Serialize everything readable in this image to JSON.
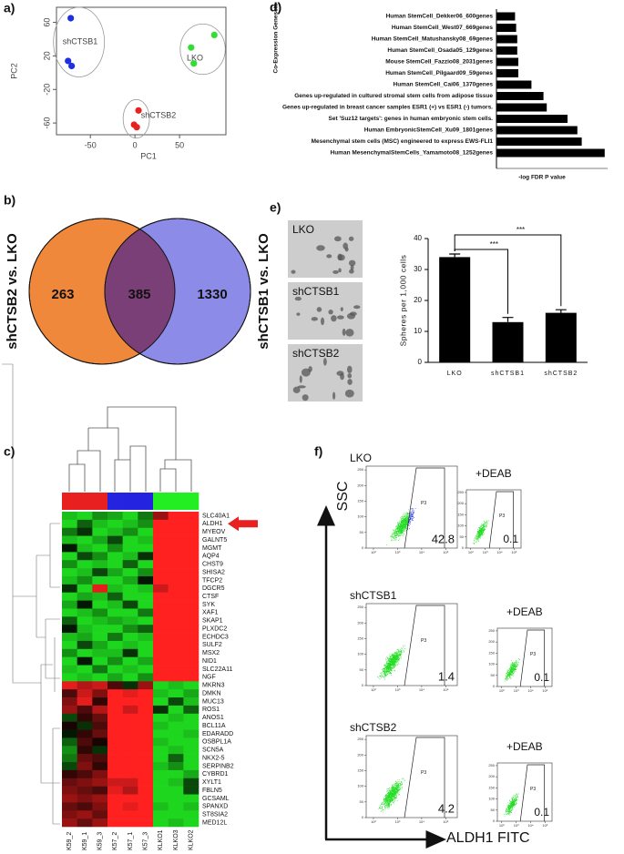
{
  "chart_data": [
    {
      "type": "scatter",
      "panel_label": "a)",
      "xlabel": "PC1",
      "ylabel": "PC2",
      "xlim": [
        -88,
        102
      ],
      "ylim": [
        -74,
        78
      ],
      "xticks": [
        -50,
        0,
        50
      ],
      "yticks": [
        -60,
        -20,
        20,
        60
      ],
      "series": [
        {
          "name": "shCTSB1",
          "color": "#2030e0",
          "x": [
            -72,
            -75,
            -71
          ],
          "values": [
            65,
            14,
            8
          ]
        },
        {
          "name": "LKO",
          "color": "#33dd33",
          "x": [
            89,
            63,
            66
          ],
          "values": [
            45,
            30,
            11
          ]
        },
        {
          "name": "shCTSB2",
          "color": "#e82020",
          "x": [
            4,
            -1,
            2
          ],
          "values": [
            -45,
            -62,
            -65
          ]
        }
      ]
    },
    {
      "type": "hbar",
      "panel_label": "d)",
      "ylabel": "Co-Expression Genesets",
      "xlabel": "-log FDR P value",
      "color": "#000000",
      "xlim": [
        0,
        10
      ],
      "categories": [
        "Human StemCell_Dekker06_600genes",
        "Human StemCell_West07_669genes",
        "Human StemCell_Matushansky08_69genes",
        "Human StemCell_Osada05_129genes",
        "Mouse StemCell_Fazzio08_2031genes",
        "Human StemCell_Pilgaard09_59genes",
        "Human StemCell_Cai06_1370genes",
        "Genes up-regulated in cultured stromal stem cells from adipose tissue",
        "Genes up-regulated in breast cancer samples  ESR1 (+) vs ESR1 (-) tumors.",
        "Set 'Suz12 targets': genes in human embryonic stem cells.",
        "Human EmbryonicStemCell_Xu09_1801genes",
        "Mesenchymal stem cells (MSC) engineered to express EWS-FLI1",
        "Human MesenchymalStemCells_Yamamoto08_1252genes"
      ],
      "values": [
        1.7,
        1.8,
        1.9,
        1.9,
        2.0,
        2.0,
        3.2,
        4.3,
        4.6,
        6.5,
        7.4,
        7.8,
        9.9
      ]
    },
    {
      "type": "venn",
      "panel_label": "b)",
      "sets": [
        {
          "name": "shCTSB2 vs. LKO",
          "color": "#f0883c",
          "value": 263
        },
        {
          "name": "shCTSB1 vs. LKO",
          "color": "#8c8ce8",
          "value": 1330
        }
      ],
      "overlap": {
        "value": 385,
        "color": "#7b3f78"
      }
    },
    {
      "type": "bar",
      "panel_label": "e)",
      "ylabel": "Spheres per 1,000 cells",
      "categories": [
        "LKO",
        "shCTSB1",
        "shCTSB2"
      ],
      "values": [
        34,
        13,
        16
      ],
      "errors": [
        1,
        1.5,
        1
      ],
      "color": "#000000",
      "ylim": [
        0,
        40
      ],
      "yticks": [
        0,
        10,
        20,
        30,
        40
      ],
      "annotations": [
        "***",
        "***"
      ]
    },
    {
      "type": "heatmap",
      "panel_label": "c)",
      "columns": [
        "K59_2",
        "K59_1",
        "K59_3",
        "K57_2",
        "K57_1",
        "K57_3",
        "KLKO1",
        "KLKO3",
        "KLKO2"
      ],
      "column_groups": [
        0,
        0,
        0,
        1,
        1,
        1,
        2,
        2,
        2
      ],
      "group_colors": [
        "#e82020",
        "#2424e0",
        "#22ee22"
      ],
      "colors": {
        "low": "#22ee22",
        "mid": "#000000",
        "high": "#ff2020"
      },
      "vlim": [
        -1,
        1
      ],
      "highlight_color": "#e82020",
      "rows": [
        "SLC40A1",
        "ALDH1",
        "MYEOV",
        "GALNT5",
        "MGMT",
        "AQP4",
        "CHST9",
        "SHISA2",
        "TFCP2",
        "DGCR5",
        "CTSF",
        "SYK",
        "XAF1",
        "SKAP1",
        "PLXDC2",
        "ECHDC3",
        "SULF2",
        "MSX2",
        "NID1",
        "SLC22A11",
        "NGF",
        "MKRN3",
        "DMKN",
        "MUC13",
        "ROS1",
        "ANOS1",
        "BCL11A",
        "EDARADD",
        "OSBPL1A",
        "SCN5A",
        "NKX2-5",
        "SERPINB2",
        "CYBRD1",
        "XYLT1",
        "FBLN5",
        "GCSAML",
        "SPANXD",
        "ST8SIA2",
        "MED12L"
      ],
      "values": [
        [
          -0.8,
          -0.9,
          -0.6,
          -0.7,
          -0.9,
          -0.5,
          0.6,
          1,
          1
        ],
        [
          -0.9,
          -0.4,
          -0.8,
          -0.9,
          -0.8,
          -0.6,
          1,
          1,
          1
        ],
        [
          -0.5,
          -0.2,
          -0.9,
          -0.8,
          -0.6,
          -0.9,
          1,
          1,
          1
        ],
        [
          -0.8,
          -0.9,
          -0.7,
          -0.3,
          -0.9,
          -0.8,
          1,
          1,
          1
        ],
        [
          -0.1,
          -0.8,
          -0.9,
          -0.6,
          -0.9,
          -0.9,
          1,
          1,
          1
        ],
        [
          -0.9,
          -0.3,
          -0.6,
          -0.9,
          -0.8,
          -0.2,
          1,
          1,
          1
        ],
        [
          -0.6,
          -0.9,
          -0.8,
          -0.9,
          -0.4,
          -0.9,
          1,
          1,
          1
        ],
        [
          -0.9,
          -0.8,
          -0.3,
          -0.7,
          -0.9,
          -0.6,
          1,
          1,
          1
        ],
        [
          -0.8,
          -0.6,
          -0.9,
          -0.9,
          -0.7,
          -0.1,
          1,
          1,
          1
        ],
        [
          -0.2,
          -0.9,
          0.9,
          -0.8,
          -0.9,
          -0.8,
          0.8,
          1,
          1
        ],
        [
          -0.9,
          -0.7,
          -0.8,
          -0.4,
          -0.9,
          -0.9,
          1,
          1,
          1
        ],
        [
          -0.7,
          -0.1,
          -0.9,
          -0.8,
          -0.3,
          -0.9,
          1,
          1,
          1
        ],
        [
          -0.9,
          -0.8,
          -0.6,
          -0.9,
          -0.9,
          -0.5,
          1,
          1,
          1
        ],
        [
          -0.4,
          -0.9,
          -0.8,
          -0.7,
          -0.8,
          -0.9,
          1,
          1,
          1
        ],
        [
          -0.1,
          -0.8,
          -0.9,
          -0.9,
          -0.6,
          -0.4,
          1,
          1,
          1
        ],
        [
          -0.8,
          -0.7,
          -0.9,
          -0.5,
          -0.9,
          -0.8,
          1,
          1,
          1
        ],
        [
          -0.9,
          -0.3,
          -0.7,
          -0.9,
          -0.8,
          -0.9,
          1,
          1,
          1
        ],
        [
          -0.6,
          -0.9,
          -0.8,
          -0.8,
          -0.2,
          -0.9,
          1,
          1,
          1
        ],
        [
          -0.9,
          -0.1,
          -0.9,
          -0.6,
          -0.9,
          -0.7,
          1,
          1,
          1
        ],
        [
          -0.8,
          -0.9,
          -0.5,
          -0.9,
          -0.8,
          -0.9,
          1,
          1,
          1
        ],
        [
          -0.9,
          -0.8,
          -0.9,
          -0.7,
          -0.9,
          -0.6,
          1,
          1,
          1
        ],
        [
          0.9,
          0.7,
          0.8,
          0.3,
          -0.2,
          0.6,
          -0.9,
          -0.8,
          -0.9
        ],
        [
          0.3,
          0.8,
          0.5,
          1,
          0.9,
          1,
          -0.8,
          -0.9,
          -0.7
        ],
        [
          0.5,
          0.9,
          0.2,
          1,
          1,
          1,
          -0.9,
          -0.3,
          -0.8
        ],
        [
          0.6,
          0.3,
          0.7,
          1,
          0.8,
          1,
          -0.2,
          -0.9,
          -0.4
        ],
        [
          -0.3,
          0.2,
          0.4,
          1,
          1,
          1,
          -0.9,
          -0.8,
          -0.9
        ],
        [
          0.1,
          -0.2,
          0.3,
          1,
          1,
          1,
          -0.8,
          -0.9,
          -0.9
        ],
        [
          -0.1,
          0.2,
          0.4,
          1,
          1,
          1,
          -0.9,
          -0.9,
          -0.8
        ],
        [
          -0.4,
          0.3,
          0.1,
          1,
          1,
          1,
          -0.8,
          -0.9,
          -0.9
        ],
        [
          -0.6,
          0.2,
          -0.2,
          1,
          1,
          1,
          -0.9,
          -0.8,
          -0.9
        ],
        [
          -0.5,
          0.4,
          0.3,
          1,
          1,
          1,
          -0.9,
          -0.4,
          -0.9
        ],
        [
          -0.3,
          0.5,
          0.2,
          1,
          1,
          1,
          -0.8,
          -0.6,
          -0.9
        ],
        [
          0.2,
          0.3,
          0.5,
          1,
          1,
          1,
          -0.9,
          -0.9,
          -0.7
        ],
        [
          0.4,
          0.5,
          0.6,
          0.8,
          0.8,
          1,
          -0.9,
          -0.8,
          -0.3
        ],
        [
          0.5,
          0.4,
          0.3,
          0.9,
          0.7,
          1,
          -0.9,
          -0.9,
          -0.3
        ],
        [
          0.6,
          0.5,
          0.6,
          1,
          1,
          1,
          -0.9,
          -0.9,
          -0.9
        ],
        [
          0.4,
          0.3,
          0.5,
          1,
          0.9,
          1,
          -0.8,
          -0.9,
          -0.8
        ],
        [
          0.5,
          0.6,
          0.4,
          1,
          1,
          1,
          -0.9,
          -0.9,
          -0.9
        ],
        [
          0.6,
          0.4,
          0.6,
          1,
          1,
          1,
          -0.9,
          -0.8,
          -0.9
        ]
      ]
    },
    {
      "type": "flow",
      "panel_label": "f)",
      "ylabel": "SSC",
      "xlabel": "ALDH1 FITC",
      "gate_label": "P3",
      "control_label": "+DEAB",
      "log_x": true,
      "xlim": [
        50,
        300000
      ],
      "ylim": [
        0,
        262
      ],
      "xticks": [
        {
          "value": 100,
          "label": "10²"
        },
        {
          "value": 1000,
          "label": "10³"
        },
        {
          "value": 10000,
          "label": "10⁴"
        },
        {
          "value": 100000,
          "label": "10⁵"
        }
      ],
      "yticks": [
        0,
        50,
        100,
        150,
        200,
        250
      ],
      "dot_colors": [
        "#22dd22",
        "#2030e0"
      ],
      "rows": [
        {
          "name": "LKO",
          "value": 42.8,
          "control_value": 0.1
        },
        {
          "name": "shCTSB1",
          "value": 1.4,
          "control_value": 0.1
        },
        {
          "name": "shCTSB2",
          "value": 4.2,
          "control_value": 0.1
        }
      ]
    }
  ]
}
